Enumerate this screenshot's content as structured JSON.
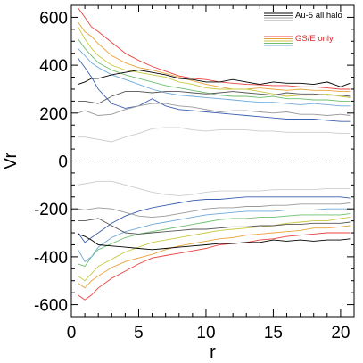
{
  "chart_data": {
    "type": "line",
    "title": "",
    "xlabel": "r",
    "ylabel": "Vr",
    "xlim": [
      0,
      21
    ],
    "ylim": [
      -650,
      650
    ],
    "x_ticks": [
      0,
      5,
      10,
      15,
      20
    ],
    "x_tick_labels": [
      "0",
      "5",
      "10",
      "15",
      "20"
    ],
    "y_ticks": [
      -600,
      -400,
      -200,
      0,
      200,
      400,
      600
    ],
    "y_tick_labels": [
      "-600",
      "-400",
      "-200",
      "0",
      "200",
      "400",
      "600"
    ],
    "grid": false,
    "zero_line": {
      "y": 0,
      "style": "dashed",
      "color": "#000000"
    },
    "legend": {
      "position": "top-right",
      "groups": [
        {
          "label": "Au-5 all halo",
          "label_color": "#000000",
          "line_colors": [
            "#000000",
            "#555555",
            "#999999",
            "#cccccc"
          ]
        },
        {
          "label": "GS/E only",
          "label_color": "#d62728",
          "line_colors": [
            "#e8433f",
            "#e8a43a",
            "#c8c840",
            "#6fbf6f",
            "#6fa9d8"
          ]
        }
      ]
    },
    "x": [
      0.5,
      1,
      1.5,
      2,
      3,
      4,
      5,
      6,
      7,
      8,
      9,
      10,
      11,
      12,
      13,
      14,
      15,
      16,
      17,
      18,
      19,
      20,
      20.7
    ],
    "series": [
      {
        "color": "#e8433f",
        "values": [
          640,
          600,
          560,
          540,
          495,
          450,
          420,
          395,
          375,
          355,
          345,
          340,
          330,
          325,
          320,
          318,
          315,
          315,
          310,
          310,
          305,
          300,
          300
        ]
      },
      {
        "color": "#e8a43a",
        "values": [
          580,
          540,
          520,
          490,
          440,
          410,
          390,
          380,
          365,
          350,
          335,
          320,
          310,
          300,
          300,
          305,
          300,
          295,
          300,
          295,
          295,
          290,
          290
        ]
      },
      {
        "color": "#c8c840",
        "values": [
          560,
          510,
          470,
          440,
          400,
          380,
          370,
          360,
          350,
          330,
          320,
          305,
          300,
          300,
          300,
          290,
          280,
          270,
          275,
          275,
          280,
          270,
          265
        ]
      },
      {
        "color": "#6fbf6f",
        "values": [
          510,
          470,
          440,
          410,
          380,
          360,
          345,
          330,
          315,
          305,
          295,
          285,
          275,
          270,
          270,
          265,
          270,
          260,
          260,
          255,
          255,
          250,
          250
        ]
      },
      {
        "color": "#6fa9d8",
        "values": [
          470,
          440,
          410,
          390,
          360,
          340,
          320,
          300,
          285,
          275,
          270,
          265,
          260,
          255,
          250,
          245,
          245,
          240,
          235,
          240,
          235,
          230,
          230
        ]
      },
      {
        "color": "#3a5fb0",
        "values": [
          430,
          390,
          350,
          300,
          240,
          220,
          230,
          260,
          230,
          215,
          210,
          205,
          200,
          195,
          190,
          185,
          180,
          175,
          175,
          175,
          170,
          165,
          165
        ]
      },
      {
        "color": "#000000",
        "values": [
          320,
          330,
          345,
          345,
          360,
          370,
          380,
          370,
          360,
          345,
          340,
          330,
          330,
          340,
          330,
          320,
          330,
          325,
          325,
          320,
          330,
          310,
          325
        ]
      },
      {
        "color": "#555555",
        "values": [
          250,
          250,
          245,
          240,
          270,
          290,
          290,
          285,
          290,
          290,
          285,
          280,
          285,
          290,
          285,
          280,
          275,
          285,
          280,
          280,
          275,
          275,
          270
        ]
      },
      {
        "color": "#999999",
        "values": [
          200,
          210,
          200,
          190,
          195,
          215,
          230,
          240,
          240,
          230,
          225,
          215,
          205,
          210,
          210,
          205,
          200,
          205,
          195,
          195,
          190,
          195,
          190
        ]
      },
      {
        "color": "#cccccc",
        "values": [
          100,
          100,
          95,
          90,
          80,
          100,
          115,
          135,
          140,
          140,
          130,
          125,
          130,
          130,
          130,
          125,
          125,
          120,
          120,
          120,
          120,
          115,
          115
        ]
      },
      {
        "color": "#e8433f",
        "values": [
          -560,
          -580,
          -560,
          -530,
          -490,
          -460,
          -430,
          -405,
          -395,
          -385,
          -375,
          -365,
          -350,
          -345,
          -340,
          -330,
          -325,
          -315,
          -310,
          -305,
          -300,
          -300,
          -300
        ]
      },
      {
        "color": "#e8a43a",
        "values": [
          -510,
          -530,
          -500,
          -480,
          -445,
          -420,
          -405,
          -390,
          -370,
          -355,
          -345,
          -335,
          -325,
          -320,
          -310,
          -305,
          -300,
          -295,
          -290,
          -280,
          -280,
          -275,
          -270
        ]
      },
      {
        "color": "#c8c840",
        "values": [
          -480,
          -500,
          -470,
          -440,
          -410,
          -380,
          -360,
          -340,
          -330,
          -320,
          -310,
          -300,
          -290,
          -285,
          -280,
          -275,
          -270,
          -260,
          -255,
          -250,
          -250,
          -240,
          -235
        ]
      },
      {
        "color": "#6fbf6f",
        "values": [
          -430,
          -440,
          -400,
          -370,
          -345,
          -320,
          -305,
          -295,
          -285,
          -275,
          -265,
          -255,
          -245,
          -240,
          -240,
          -235,
          -235,
          -230,
          -225,
          -225,
          -225,
          -225,
          -220
        ]
      },
      {
        "color": "#6fa9d8",
        "values": [
          -370,
          -420,
          -400,
          -360,
          -320,
          -295,
          -280,
          -265,
          -255,
          -245,
          -235,
          -225,
          -220,
          -215,
          -210,
          -210,
          -210,
          -205,
          -205,
          -205,
          -200,
          -200,
          -200
        ]
      },
      {
        "color": "#3a5fb0",
        "values": [
          -300,
          -340,
          -320,
          -300,
          -260,
          -230,
          -210,
          -195,
          -185,
          -175,
          -165,
          -160,
          -160,
          -155,
          -150,
          -150,
          -150,
          -150,
          -150,
          -150,
          -150,
          -150,
          -155
        ]
      },
      {
        "color": "#000000",
        "values": [
          -305,
          -315,
          -330,
          -350,
          -355,
          -360,
          -365,
          -370,
          -365,
          -360,
          -355,
          -350,
          -345,
          -345,
          -340,
          -340,
          -330,
          -335,
          -330,
          -335,
          -330,
          -330,
          -325
        ]
      },
      {
        "color": "#555555",
        "values": [
          -250,
          -250,
          -245,
          -240,
          -270,
          -300,
          -305,
          -300,
          -295,
          -290,
          -285,
          -285,
          -280,
          -275,
          -275,
          -270,
          -270,
          -265,
          -265,
          -260,
          -260,
          -260,
          -255
        ]
      },
      {
        "color": "#999999",
        "values": [
          -200,
          -205,
          -200,
          -195,
          -200,
          -215,
          -230,
          -235,
          -230,
          -220,
          -210,
          -200,
          -195,
          -195,
          -190,
          -190,
          -185,
          -185,
          -180,
          -180,
          -180,
          -180,
          -175
        ]
      },
      {
        "color": "#cccccc",
        "values": [
          -100,
          -95,
          -90,
          -85,
          -85,
          -100,
          -115,
          -130,
          -140,
          -145,
          -140,
          -130,
          -125,
          -125,
          -125,
          -125,
          -120,
          -120,
          -120,
          -120,
          -115,
          -115,
          -115
        ]
      }
    ]
  }
}
